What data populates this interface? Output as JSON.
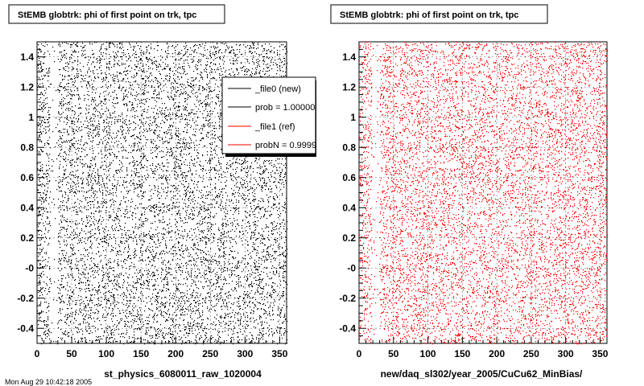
{
  "chart_data": [
    {
      "type": "scatter",
      "title": "StEMB globtrk: phi of first point on trk, tpc",
      "xlabel": "st_physics_6080011_raw_1020004",
      "ylabel": "",
      "xlim": [
        0,
        360
      ],
      "ylim": [
        -0.5,
        1.5
      ],
      "x_ticks": [
        "0",
        "50",
        "100",
        "150",
        "200",
        "250",
        "300",
        "350"
      ],
      "x_tick_values": [
        0,
        50,
        100,
        150,
        200,
        250,
        300,
        350
      ],
      "y_ticks": [
        "-0.4",
        "-0.2",
        "-0",
        "0.2",
        "0.4",
        "0.6",
        "0.8",
        "1",
        "1.2",
        "1.4"
      ],
      "y_tick_values": [
        -0.4,
        -0.2,
        0,
        0.2,
        0.4,
        0.6,
        0.8,
        1.0,
        1.2,
        1.4
      ],
      "series": [
        {
          "name": "_file0 (new)",
          "color": "#000000",
          "density": "uniform",
          "gap_x": [
            18,
            30
          ]
        }
      ],
      "legend": {
        "placement": "top-right",
        "entries": [
          {
            "label": "_file0 (new)",
            "color": "#000000"
          },
          {
            "label": "prob = 1.000000",
            "color": "#000000"
          },
          {
            "label": "_file1 (ref)",
            "color": "#ff0000"
          },
          {
            "label": "probN = 0.99997",
            "color": "#ff0000"
          }
        ]
      }
    },
    {
      "type": "scatter",
      "title": "StEMB globtrk: phi of first point on trk, tpc",
      "xlabel": "new/daq_sl302/year_2005/CuCu62_MinBias/",
      "ylabel": "",
      "xlim": [
        0,
        360
      ],
      "ylim": [
        -0.5,
        1.5
      ],
      "x_ticks": [
        "0",
        "50",
        "100",
        "150",
        "200",
        "250",
        "300",
        "350"
      ],
      "x_tick_values": [
        0,
        50,
        100,
        150,
        200,
        250,
        300,
        350
      ],
      "y_ticks": [
        "-0.4",
        "-0.2",
        "-0",
        "0.2",
        "0.4",
        "0.6",
        "0.8",
        "1",
        "1.2",
        "1.4"
      ],
      "y_tick_values": [
        -0.4,
        -0.2,
        0,
        0.2,
        0.4,
        0.6,
        0.8,
        1.0,
        1.2,
        1.4
      ],
      "series": [
        {
          "name": "_file1 (ref)",
          "color": "#ff0000",
          "density": "uniform",
          "gap_x": [
            18,
            30
          ]
        }
      ]
    }
  ],
  "footer": "Mon Aug 29 10:42:18 2005"
}
